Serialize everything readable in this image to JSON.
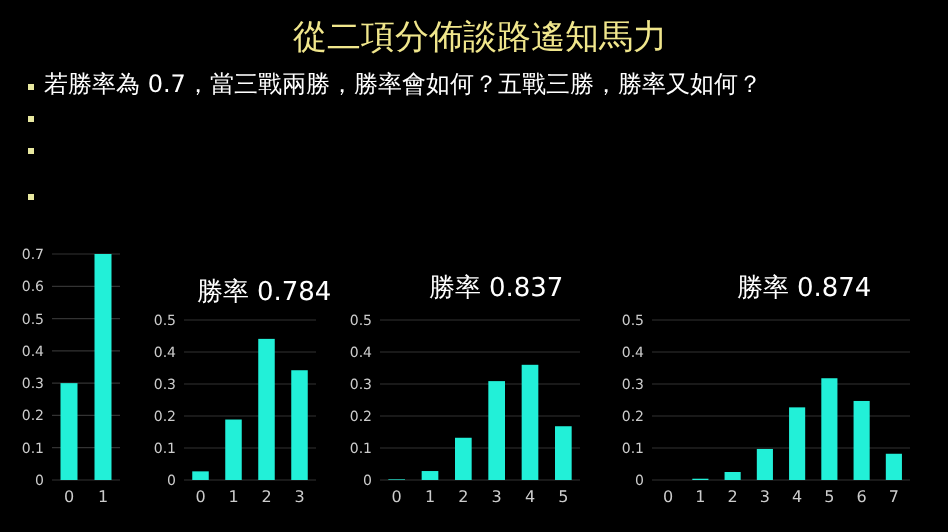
{
  "chart_data": [
    {
      "type": "other",
      "title": "從二項分佈談路遙知馬力",
      "subtitle": "若勝率為 0.7，當三戰兩勝，勝率會如何？五戰三勝，勝率又如何？"
    },
    {
      "type": "bar",
      "categories": [
        "0",
        "1"
      ],
      "values": [
        0.3,
        0.7
      ],
      "color": "#22f0d8",
      "ylim": [
        0,
        0.7
      ],
      "yticks": [
        0,
        0.1,
        0.2,
        0.3,
        0.4,
        0.5,
        0.6,
        0.7
      ],
      "grid": "y"
    },
    {
      "type": "bar",
      "title": "勝率 0.784",
      "categories": [
        "0",
        "1",
        "2",
        "3"
      ],
      "values": [
        0.027,
        0.189,
        0.441,
        0.343
      ],
      "color": "#22f0d8",
      "ylim": [
        0,
        0.5
      ],
      "yticks": [
        0,
        0.1,
        0.2,
        0.3,
        0.4,
        0.5
      ],
      "grid": "y"
    },
    {
      "type": "bar",
      "title": "勝率 0.837",
      "categories": [
        "0",
        "1",
        "2",
        "3",
        "4",
        "5"
      ],
      "values": [
        0.002,
        0.028,
        0.132,
        0.309,
        0.36,
        0.168
      ],
      "color": "#22f0d8",
      "ylim": [
        0,
        0.5
      ],
      "yticks": [
        0,
        0.1,
        0.2,
        0.3,
        0.4,
        0.5
      ],
      "grid": "y"
    },
    {
      "type": "bar",
      "title": "勝率 0.874",
      "categories": [
        "0",
        "1",
        "2",
        "3",
        "4",
        "5",
        "6",
        "7"
      ],
      "values": [
        0,
        0.004,
        0.025,
        0.097,
        0.227,
        0.318,
        0.247,
        0.082
      ],
      "color": "#22f0d8",
      "ylim": [
        0,
        0.5
      ],
      "yticks": [
        0,
        0.1,
        0.2,
        0.3,
        0.4,
        0.5
      ],
      "grid": "y"
    }
  ]
}
